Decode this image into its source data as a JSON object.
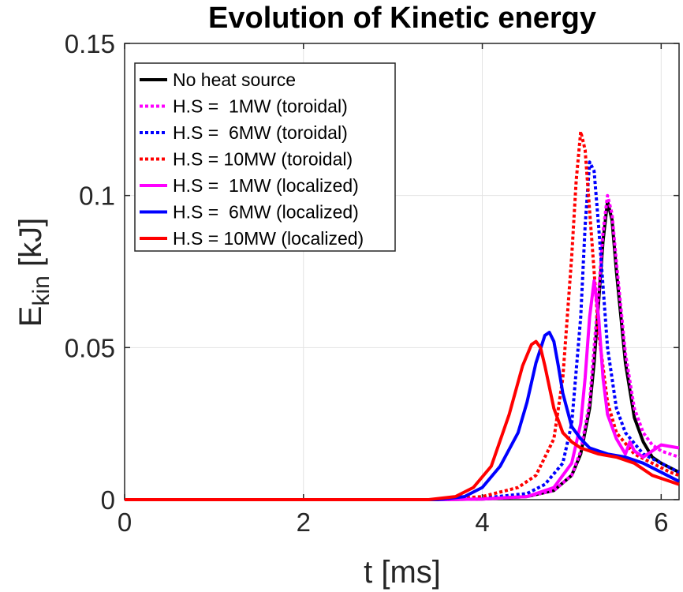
{
  "chart_data": {
    "type": "line",
    "title": "Evolution of Kinetic energy",
    "xlabel": "t [ms]",
    "ylabel_main": "E",
    "ylabel_sub": "kin",
    "ylabel_unit": " [kJ]",
    "xlim": [
      0,
      6.2
    ],
    "ylim": [
      0,
      0.15
    ],
    "xticks": [
      0,
      2,
      4,
      6
    ],
    "yticks": [
      0,
      0.05,
      0.1,
      0.15
    ],
    "xtick_labels": [
      "0",
      "2",
      "4",
      "6"
    ],
    "ytick_labels": [
      "0",
      "0.05",
      "0.1",
      "0.15"
    ],
    "grid": true,
    "legend_position": "top-left",
    "series": [
      {
        "name": "No heat source",
        "color": "#000000",
        "style": "solid",
        "x": [
          0,
          3.5,
          4.0,
          4.5,
          4.8,
          5.0,
          5.1,
          5.2,
          5.25,
          5.3,
          5.35,
          5.4,
          5.45,
          5.5,
          5.6,
          5.7,
          5.8,
          5.9,
          6.0,
          6.2
        ],
        "y": [
          0,
          0,
          0.0002,
          0.001,
          0.003,
          0.008,
          0.015,
          0.03,
          0.045,
          0.065,
          0.085,
          0.098,
          0.092,
          0.075,
          0.045,
          0.027,
          0.019,
          0.014,
          0.012,
          0.009
        ]
      },
      {
        "name": "H.S =  1MW (toroidal)",
        "color": "#ff00ff",
        "style": "dotted",
        "x": [
          0,
          3.5,
          4.0,
          4.5,
          4.8,
          5.0,
          5.1,
          5.2,
          5.3,
          5.35,
          5.4,
          5.45,
          5.5,
          5.6,
          5.7,
          5.8,
          5.9,
          6.0,
          6.2
        ],
        "y": [
          0,
          0,
          0.0002,
          0.001,
          0.003,
          0.008,
          0.016,
          0.032,
          0.068,
          0.088,
          0.1,
          0.094,
          0.078,
          0.048,
          0.03,
          0.022,
          0.018,
          0.016,
          0.014
        ]
      },
      {
        "name": "H.S =  6MW (toroidal)",
        "color": "#0000ff",
        "style": "dotted",
        "x": [
          0,
          3.5,
          4.0,
          4.5,
          4.7,
          4.9,
          5.0,
          5.1,
          5.15,
          5.2,
          5.25,
          5.3,
          5.4,
          5.5,
          5.6,
          5.8,
          6.0,
          6.2
        ],
        "y": [
          0,
          0,
          0.0005,
          0.002,
          0.005,
          0.012,
          0.025,
          0.06,
          0.09,
          0.111,
          0.108,
          0.09,
          0.05,
          0.03,
          0.022,
          0.015,
          0.012,
          0.009
        ]
      },
      {
        "name": "H.S = 10MW (toroidal)",
        "color": "#ff0000",
        "style": "dotted",
        "x": [
          0,
          3.5,
          4.0,
          4.4,
          4.6,
          4.8,
          4.9,
          5.0,
          5.05,
          5.1,
          5.15,
          5.2,
          5.3,
          5.4,
          5.5,
          5.7,
          5.9,
          6.1,
          6.2
        ],
        "y": [
          0,
          0,
          0.001,
          0.004,
          0.008,
          0.02,
          0.04,
          0.08,
          0.105,
          0.121,
          0.115,
          0.095,
          0.055,
          0.032,
          0.022,
          0.015,
          0.012,
          0.009,
          0.008
        ]
      },
      {
        "name": "H.S =  1MW (localized)",
        "color": "#ff00ff",
        "style": "solid",
        "x": [
          0,
          3.5,
          4.0,
          4.5,
          4.8,
          5.0,
          5.1,
          5.15,
          5.2,
          5.25,
          5.3,
          5.35,
          5.4,
          5.5,
          5.6,
          5.65,
          5.7,
          5.8,
          5.9,
          6.0,
          6.2
        ],
        "y": [
          0,
          0,
          0.0002,
          0.001,
          0.004,
          0.012,
          0.025,
          0.04,
          0.06,
          0.072,
          0.06,
          0.04,
          0.028,
          0.02,
          0.015,
          0.019,
          0.016,
          0.014,
          0.016,
          0.018,
          0.017
        ]
      },
      {
        "name": "H.S =  6MW (localized)",
        "color": "#0000ff",
        "style": "solid",
        "x": [
          0,
          3.5,
          3.8,
          4.0,
          4.2,
          4.4,
          4.5,
          4.6,
          4.7,
          4.75,
          4.8,
          4.85,
          4.9,
          5.0,
          5.1,
          5.2,
          5.4,
          5.6,
          5.8,
          6.0,
          6.2
        ],
        "y": [
          0,
          0,
          0.001,
          0.004,
          0.011,
          0.022,
          0.032,
          0.045,
          0.054,
          0.055,
          0.052,
          0.044,
          0.035,
          0.024,
          0.02,
          0.017,
          0.015,
          0.014,
          0.012,
          0.009,
          0.006
        ]
      },
      {
        "name": "H.S = 10MW (localized)",
        "color": "#ff0000",
        "style": "solid",
        "x": [
          0,
          3.4,
          3.7,
          3.9,
          4.1,
          4.3,
          4.45,
          4.55,
          4.6,
          4.65,
          4.7,
          4.8,
          4.9,
          5.0,
          5.1,
          5.3,
          5.5,
          5.7,
          5.9,
          6.1,
          6.2
        ],
        "y": [
          0,
          0,
          0.001,
          0.004,
          0.011,
          0.028,
          0.044,
          0.051,
          0.052,
          0.05,
          0.044,
          0.03,
          0.022,
          0.019,
          0.017,
          0.015,
          0.014,
          0.012,
          0.008,
          0.006,
          0.005
        ]
      }
    ]
  }
}
